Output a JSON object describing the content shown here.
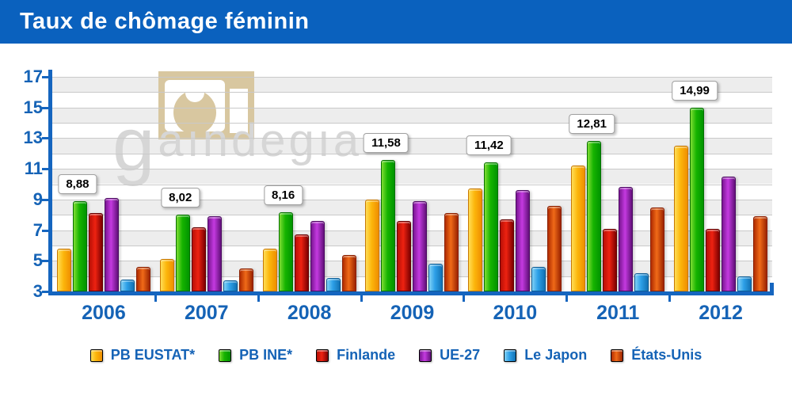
{
  "header": {
    "title": "Taux de chômage féminin"
  },
  "watermark": {
    "logo_name": "gaindegia-logo",
    "text_big": "g",
    "text_rest": "aındegıa"
  },
  "chart_data": {
    "type": "bar",
    "title": "Taux de chômage féminin",
    "categories": [
      "2006",
      "2007",
      "2008",
      "2009",
      "2010",
      "2011",
      "2012"
    ],
    "series": [
      {
        "name": "PB EUSTAT*",
        "color": "#f9a50b",
        "values": [
          5.8,
          5.1,
          5.8,
          9.0,
          9.7,
          11.2,
          12.5
        ]
      },
      {
        "name": "PB INE*",
        "color": "#16b400",
        "values": [
          8.88,
          8.02,
          8.16,
          11.58,
          11.42,
          12.81,
          14.99
        ]
      },
      {
        "name": "Finlande",
        "color": "#cc1408",
        "values": [
          8.1,
          7.2,
          6.7,
          7.6,
          7.7,
          7.1,
          7.1
        ]
      },
      {
        "name": "UE-27",
        "color": "#b52fd4",
        "values": [
          9.1,
          7.9,
          7.6,
          8.9,
          9.6,
          9.8,
          10.5
        ]
      },
      {
        "name": "Le Japon",
        "color": "#2da0e8",
        "values": [
          3.8,
          3.7,
          3.9,
          4.8,
          4.6,
          4.2,
          4.0
        ]
      },
      {
        "name": "États-Unis",
        "color": "#e55a14",
        "values": [
          4.6,
          4.5,
          5.4,
          8.1,
          8.6,
          8.5,
          7.9
        ]
      }
    ],
    "bar_labels": {
      "series_index": 1,
      "texts": [
        "8,88",
        "8,02",
        "8,16",
        "11,58",
        "11,42",
        "12,81",
        "14,99"
      ]
    },
    "ylim": [
      3,
      17
    ],
    "yticks": [
      "3",
      "5",
      "7",
      "9",
      "11",
      "13",
      "15",
      "17"
    ],
    "grid": "horizontal gridlines every 1 unit, alternating shaded bands every 2 units",
    "legend_position": "bottom",
    "xlabel": "",
    "ylabel": ""
  },
  "colors": {
    "header_bg": "#0a61be",
    "axis_blue": "#1565bf",
    "label_blue": "#1563b6",
    "gridline": "#c9c9c9",
    "band": "#ededed",
    "watermark_tan": "#d8c7a0",
    "watermark_text": "#d6d6d6"
  }
}
